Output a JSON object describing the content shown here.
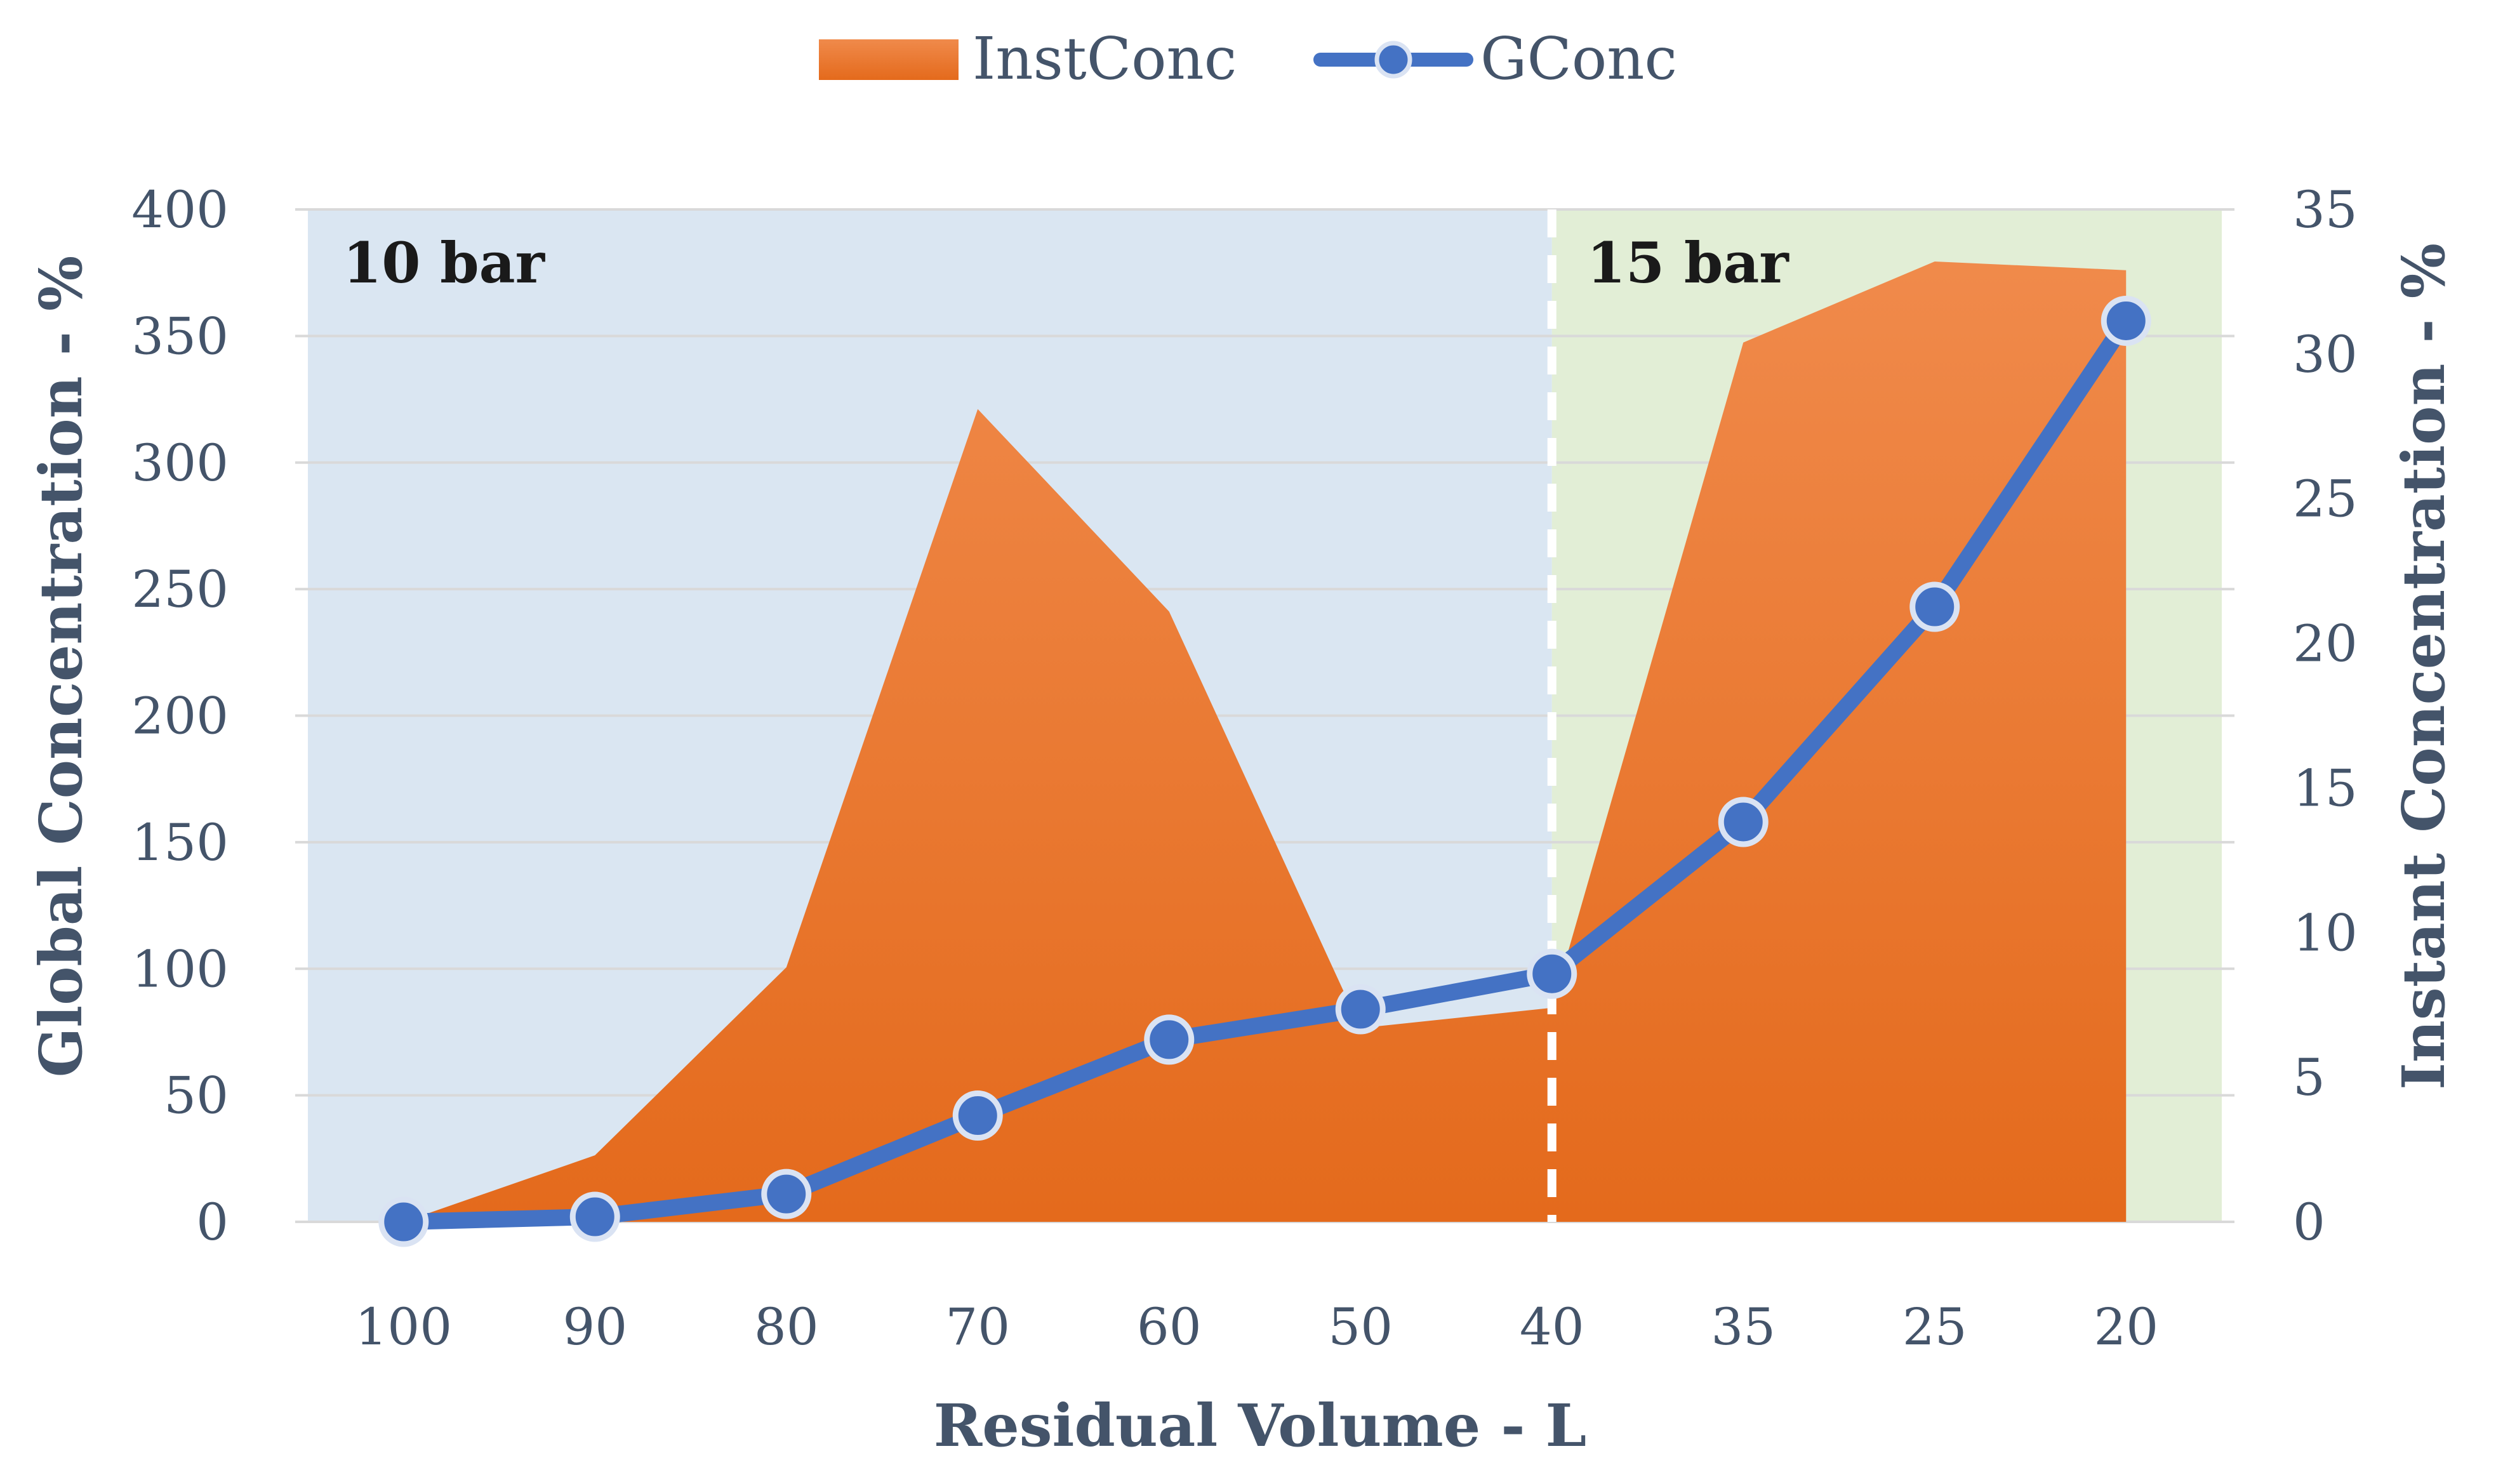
{
  "chart_data": {
    "type": "area",
    "categories": [
      "100",
      "90",
      "80",
      "70",
      "60",
      "50",
      "40",
      "35",
      "25",
      "20"
    ],
    "series": [
      {
        "name": "InstConc",
        "type": "area",
        "axis": "right",
        "values": [
          0,
          2.3,
          8.8,
          28.1,
          21.1,
          6.7,
          7.4,
          30.4,
          33.2,
          32.9
        ]
      },
      {
        "name": "GConc",
        "type": "line",
        "axis": "left",
        "values": [
          0,
          2,
          11,
          42,
          72,
          84,
          98,
          158,
          243,
          356
        ]
      }
    ],
    "xlabel": "Residual Volume - L",
    "ylabel": "Global Concentration - %",
    "ylabel_right": "Instant Concentration - %",
    "ylim": [
      0,
      400
    ],
    "ylim_right": [
      0,
      35
    ],
    "yticks": [
      "0",
      "50",
      "100",
      "150",
      "200",
      "250",
      "300",
      "350",
      "400"
    ],
    "yticks_right": [
      "0",
      "5",
      "10",
      "15",
      "20",
      "25",
      "30",
      "35"
    ],
    "regions": [
      {
        "label": "10 bar",
        "from_category": "100",
        "to_category": "40",
        "color": "#dae6f2"
      },
      {
        "label": "15 bar",
        "from_category": "40",
        "to_category": "20",
        "color": "#e2eed6"
      }
    ],
    "grid": true,
    "legend_position": "top-center",
    "colors": {
      "area_top": "#f08a4b",
      "area_bottom": "#e46a1c",
      "line": "#4472c4",
      "marker_fill": "#4472c4",
      "marker_edge": "#dae3f3",
      "divider": "#ffffff"
    }
  }
}
